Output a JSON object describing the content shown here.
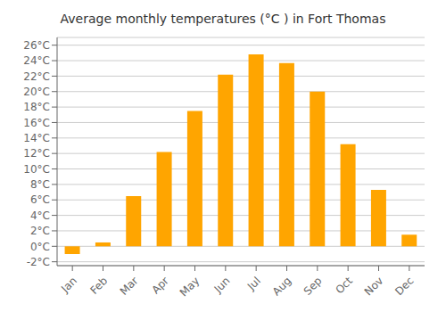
{
  "chart_data": {
    "type": "bar",
    "title": "Average monthly temperatures (°C ) in Fort Thomas",
    "categories": [
      "Jan",
      "Feb",
      "Mar",
      "Apr",
      "May",
      "Jun",
      "Jul",
      "Aug",
      "Sep",
      "Oct",
      "Nov",
      "Dec"
    ],
    "values": [
      -1.0,
      0.5,
      6.5,
      12.2,
      17.5,
      22.2,
      24.8,
      23.7,
      20.0,
      13.2,
      7.3,
      1.5
    ],
    "color": "#FFA500",
    "ylim": [
      -2.5,
      27
    ],
    "yticks": [
      {
        "value": -2,
        "label": "-2°C"
      },
      {
        "value": 0,
        "label": "0°C"
      },
      {
        "value": 2,
        "label": "2°C"
      },
      {
        "value": 4,
        "label": "4°C"
      },
      {
        "value": 6,
        "label": "6°C"
      },
      {
        "value": 8,
        "label": "8°C"
      },
      {
        "value": 10,
        "label": "10°C"
      },
      {
        "value": 12,
        "label": "12°C"
      },
      {
        "value": 14,
        "label": "14°C"
      },
      {
        "value": 16,
        "label": "16°C"
      },
      {
        "value": 18,
        "label": "18°C"
      },
      {
        "value": 20,
        "label": "20°C"
      },
      {
        "value": 22,
        "label": "22°C"
      },
      {
        "value": 24,
        "label": "24°C"
      },
      {
        "value": 26,
        "label": "26°C"
      }
    ],
    "grid": true
  }
}
